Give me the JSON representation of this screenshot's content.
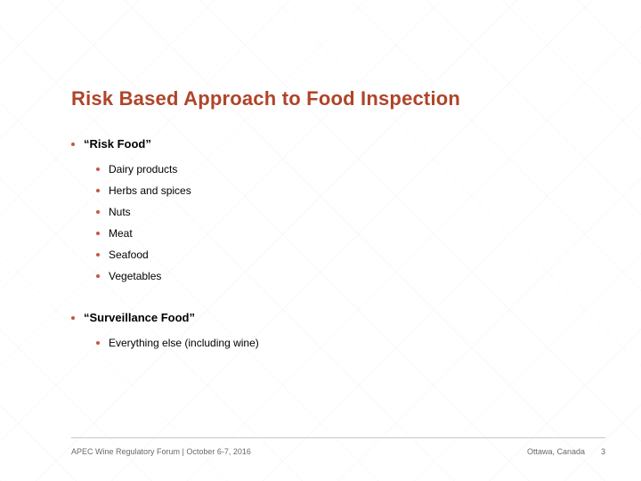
{
  "colors": {
    "title": "#b0442a",
    "bullet": "#c15a3f",
    "rule": "#c7c7c7",
    "footer_text": "#6b6b6b",
    "background": "#ffffff"
  },
  "title": "Risk Based Approach to Food Inspection",
  "groups": [
    {
      "heading": "“Risk Food”",
      "items": [
        "Dairy products",
        "Herbs and spices",
        "Nuts",
        "Meat",
        "Seafood",
        "Vegetables"
      ]
    },
    {
      "heading": "“Surveillance Food”",
      "items": [
        "Everything else (including wine)"
      ]
    }
  ],
  "footer": {
    "left": "APEC Wine Regulatory Forum |  October 6-7, 2016",
    "location": "Ottawa, Canada",
    "page": "3"
  }
}
